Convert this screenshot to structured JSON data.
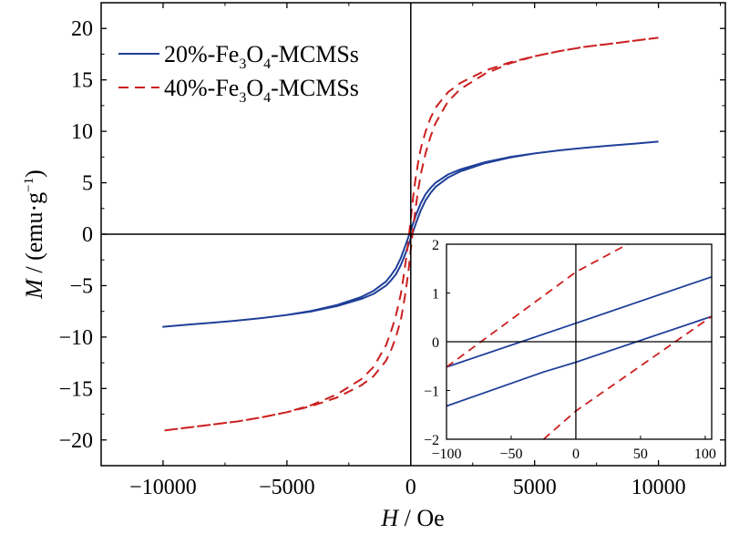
{
  "chart_data": [
    {
      "type": "line",
      "panel": "main",
      "xlabel": {
        "symbol": "H",
        "unit": " / Oe"
      },
      "ylabel": {
        "symbol": "M",
        "unit_prefix": " / (emu·g",
        "unit_sup": "−1",
        "unit_suffix": ")"
      },
      "xlim": [
        -12500,
        12700
      ],
      "ylim": [
        -22.5,
        22.5
      ],
      "xticks": [
        -10000,
        -5000,
        0,
        5000,
        10000
      ],
      "xtick_labels": [
        "−10000",
        "−5000",
        "0",
        "5000",
        "10000"
      ],
      "yticks": [
        -20,
        -15,
        -10,
        -5,
        0,
        5,
        10,
        15,
        20
      ],
      "ytick_labels": [
        "−20",
        "−15",
        "−10",
        "−5",
        "0",
        "5",
        "10",
        "15",
        "20"
      ],
      "legend": {
        "placement": "top-left"
      },
      "series": [
        {
          "name": "20%-Fe3O4-MCMSs",
          "legend_parts": [
            "20%-Fe",
            "3",
            "O",
            "4",
            "-MCMSs"
          ],
          "color": "#1f3f99",
          "style": "solid",
          "x": [
            0,
            200,
            400,
            600,
            800,
            1000,
            1500,
            2000,
            3000,
            4000,
            5000,
            6000,
            7000,
            8000,
            9000,
            10000
          ],
          "upper": [
            0.4,
            1.8,
            3.0,
            3.9,
            4.5,
            5.0,
            5.8,
            6.3,
            7.0,
            7.5,
            7.85,
            8.15,
            8.4,
            8.6,
            8.8,
            9.0
          ],
          "lower": [
            -0.4,
            1.0,
            2.3,
            3.3,
            4.0,
            4.6,
            5.5,
            6.1,
            6.9,
            7.45,
            7.85,
            8.15,
            8.4,
            8.6,
            8.8,
            9.0
          ]
        },
        {
          "name": "40%-Fe3O4-MCMSs",
          "legend_parts": [
            "40%-Fe",
            "3",
            "O",
            "4",
            "-MCMSs"
          ],
          "color": "#cc1f1f",
          "style": "dashed",
          "x": [
            0,
            100,
            200,
            300,
            400,
            600,
            800,
            1000,
            1500,
            2000,
            3000,
            4000,
            5000,
            6000,
            7000,
            8000,
            9000,
            10000
          ],
          "upper": [
            1.5,
            3.7,
            5.5,
            7.0,
            8.3,
            10.0,
            11.3,
            12.3,
            13.8,
            14.7,
            15.9,
            16.7,
            17.3,
            17.8,
            18.2,
            18.5,
            18.8,
            19.1
          ],
          "lower": [
            -1.5,
            0.7,
            2.6,
            4.3,
            5.8,
            7.9,
            9.5,
            10.8,
            12.9,
            14.1,
            15.6,
            16.6,
            17.3,
            17.8,
            18.2,
            18.5,
            18.8,
            19.1
          ]
        }
      ]
    },
    {
      "type": "line",
      "panel": "inset",
      "xlim": [
        -100,
        105
      ],
      "ylim": [
        -2,
        2
      ],
      "xticks": [
        -100,
        -50,
        0,
        50,
        100
      ],
      "xtick_labels": [
        "−100",
        "−50",
        "0",
        "50",
        "100"
      ],
      "yticks": [
        -2,
        -1,
        0,
        1,
        2
      ],
      "ytick_labels": [
        "−2",
        "−1",
        "0",
        "1",
        "2"
      ],
      "series": [
        {
          "name": "20%-Fe3O4-MCMSs",
          "color": "#1f3f99",
          "style": "solid",
          "branches": [
            {
              "x": [
                -100,
                0,
                105
              ],
              "y": [
                -0.52,
                0.38,
                1.33
              ]
            },
            {
              "x": [
                -100,
                -25,
                0,
                105
              ],
              "y": [
                -1.32,
                -0.62,
                -0.42,
                0.52
              ]
            }
          ]
        },
        {
          "name": "40%-Fe3O4-MCMSs",
          "color": "#cc1f1f",
          "style": "dashed",
          "branches": [
            {
              "x": [
                -100,
                0,
                40
              ],
              "y": [
                -0.52,
                1.43,
                2.0
              ]
            },
            {
              "x": [
                -25,
                0,
                105
              ],
              "y": [
                -2.0,
                -1.42,
                0.52
              ]
            }
          ]
        }
      ]
    }
  ]
}
